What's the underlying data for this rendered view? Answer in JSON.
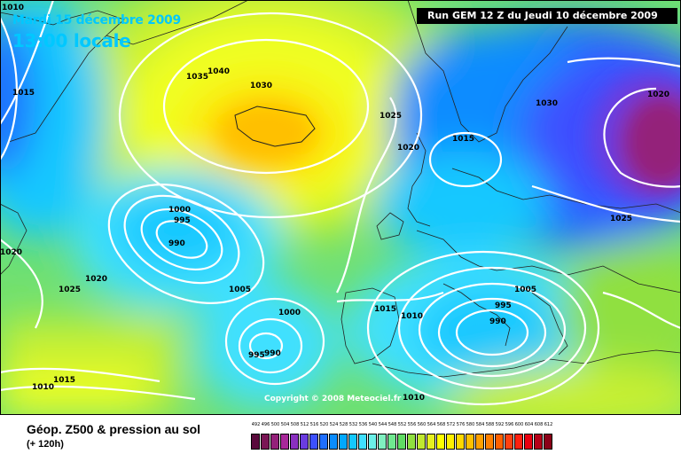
{
  "map": {
    "date_line": "Mardi 15 décembre 2009",
    "time_line": "13:00 locale",
    "run_line": "Run GEM 12 Z du Jeudi 10 décembre 2009",
    "copyright": "Copyright © 2008 Meteociel.fr",
    "pressure_labels": [
      "1010",
      "1040",
      "1035",
      "1030",
      "1015",
      "1025",
      "1020",
      "1015",
      "1030",
      "1020",
      "1025",
      "1020",
      "1025",
      "1020",
      "1000",
      "995",
      "990",
      "1005",
      "1000",
      "995",
      "990",
      "1015",
      "1010",
      "1005",
      "995",
      "990",
      "1010",
      "1015",
      "1010",
      "1010"
    ]
  },
  "footer": {
    "title": "Géop. Z500 & pression au sol",
    "subtitle": "(+ 120h)"
  },
  "legend": {
    "labels": [
      "492",
      "496",
      "500",
      "504",
      "508",
      "512",
      "516",
      "520",
      "524",
      "528",
      "532",
      "536",
      "540",
      "544",
      "548",
      "552",
      "556",
      "560",
      "564",
      "568",
      "572",
      "576",
      "580",
      "584",
      "588",
      "592",
      "596",
      "600",
      "604",
      "608",
      "612"
    ],
    "colors": [
      "#5a0a3c",
      "#7a1555",
      "#94207a",
      "#a8289a",
      "#8a30c0",
      "#6a3ce0",
      "#3c50ff",
      "#1e6eff",
      "#0a8cff",
      "#00a8ff",
      "#14c8ff",
      "#40e0ff",
      "#6cf0e8",
      "#80f0c0",
      "#70e890",
      "#60dc64",
      "#90e040",
      "#c0e830",
      "#e6f020",
      "#ffff00",
      "#fff000",
      "#ffd800",
      "#ffc000",
      "#ffa000",
      "#ff8000",
      "#ff6000",
      "#ff4010",
      "#ff2010",
      "#e80010",
      "#b40018",
      "#8a0018"
    ]
  }
}
